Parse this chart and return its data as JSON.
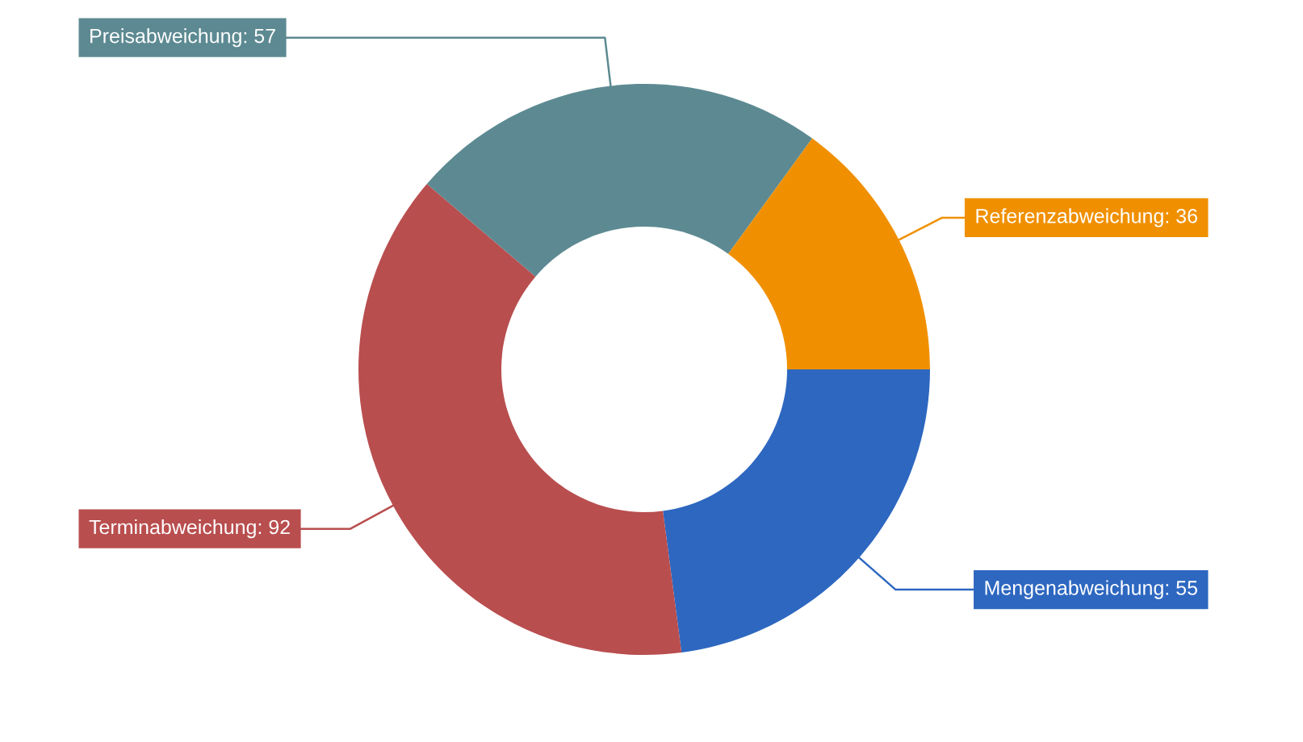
{
  "chart_data": {
    "type": "donut",
    "categories": [
      "Mengenabweichung: 55",
      "Terminabweichung: 92",
      "Preisabweichung: 57",
      "Referenzabweichung: 36"
    ],
    "values": [
      55,
      92,
      57,
      36
    ],
    "colors": [
      "#2d67c0",
      "#b94e4f",
      "#5d8a92",
      "#f09000"
    ]
  }
}
